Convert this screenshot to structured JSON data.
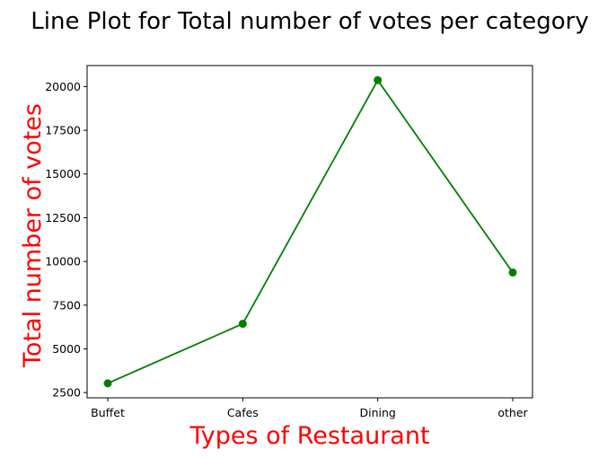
{
  "chart_data": {
    "type": "line",
    "title": "Line Plot for Total number of votes per category",
    "xlabel": "Types of Restaurant",
    "ylabel": "Total number of votes",
    "categories": [
      "Buffet",
      "Cafes",
      "Dining",
      "other"
    ],
    "series": [
      {
        "values": [
          3028,
          6434,
          20363,
          9367
        ],
        "color": "#008000",
        "marker": "circle"
      }
    ],
    "ylim": [
      2200,
      21200
    ],
    "yticks": [
      2500,
      5000,
      7500,
      10000,
      12500,
      15000,
      17500,
      20000
    ],
    "grid": false,
    "label_color": "#ff0000"
  }
}
